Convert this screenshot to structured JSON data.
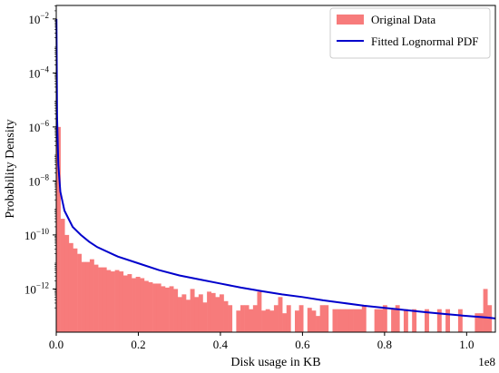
{
  "chart_data": {
    "type": "bar",
    "xlabel": "Disk usage in KB",
    "ylabel": "Probability Density",
    "x_scale_note": "1e8",
    "xlim": [
      0,
      1.07
    ],
    "y_scale": "log",
    "ylim_exponent": [
      -13.6,
      -1.5
    ],
    "x_ticks": [
      {
        "value": 0.0,
        "label": "0.0"
      },
      {
        "value": 0.2,
        "label": "0.2"
      },
      {
        "value": 0.4,
        "label": "0.4"
      },
      {
        "value": 0.6,
        "label": "0.6"
      },
      {
        "value": 0.8,
        "label": "0.8"
      },
      {
        "value": 1.0,
        "label": "1.0"
      }
    ],
    "y_ticks": [
      {
        "exp": -2,
        "base": "10",
        "sup": "−2"
      },
      {
        "exp": -4,
        "base": "10",
        "sup": "−4"
      },
      {
        "exp": -6,
        "base": "10",
        "sup": "−6"
      },
      {
        "exp": -8,
        "base": "10",
        "sup": "−8"
      },
      {
        "exp": -10,
        "base": "10",
        "sup": "−10"
      },
      {
        "exp": -12,
        "base": "10",
        "sup": "−12"
      }
    ],
    "legend": {
      "placement": "top-right",
      "items": [
        {
          "label": "Original Data",
          "kind": "patch",
          "color": "#f77b7b"
        },
        {
          "label": "Fitted Lognormal PDF",
          "kind": "line",
          "color": "#0000cc"
        }
      ]
    },
    "series": [
      {
        "name": "Original Data",
        "kind": "histogram",
        "color": "#f77b7b",
        "bin_width": 0.0102,
        "log10_density": [
          -6.0,
          -9.4,
          -10.0,
          -10.3,
          -10.5,
          -10.7,
          -11.0,
          -11.0,
          -10.9,
          -11.1,
          -11.2,
          -11.2,
          -11.3,
          -11.35,
          -11.3,
          -11.35,
          -11.5,
          -11.45,
          -11.6,
          -11.55,
          -11.6,
          -11.7,
          -11.75,
          -11.8,
          -11.8,
          -11.9,
          -11.95,
          -11.9,
          -12.0,
          -12.3,
          -12.2,
          -12.4,
          -12.0,
          -12.3,
          -12.2,
          -12.5,
          -12.1,
          -12.15,
          -12.3,
          -12.2,
          -12.45,
          -12.6,
          -13.6,
          -12.8,
          -12.6,
          -12.6,
          -12.75,
          -12.6,
          -12.1,
          -12.8,
          -12.75,
          -12.8,
          -12.6,
          -12.3,
          -12.9,
          -12.6,
          -13.6,
          -12.8,
          -12.6,
          -13.6,
          -12.7,
          -12.8,
          -13.0,
          -12.6,
          -12.6,
          -13.6,
          -12.75,
          -12.75,
          -12.75,
          -12.75,
          -12.75,
          -12.75,
          -12.75,
          -12.6,
          -13.6,
          -13.6,
          -12.75,
          -12.75,
          -12.6,
          -13.6,
          -12.75,
          -12.6,
          -13.6,
          -12.75,
          -13.6,
          -12.75,
          -13.6,
          -13.6,
          -12.75,
          -13.6,
          -13.6,
          -12.75,
          -13.6,
          -12.75,
          -13.6,
          -13.6,
          -12.75,
          -13.6,
          -13.6,
          -13.6,
          -12.9,
          -12.9,
          -12.0,
          -12.6
        ]
      },
      {
        "name": "Fitted Lognormal PDF",
        "kind": "line",
        "color": "#0000cc",
        "points": [
          [
            0.0005,
            -2.0
          ],
          [
            0.002,
            -5.6
          ],
          [
            0.005,
            -7.4
          ],
          [
            0.01,
            -8.4
          ],
          [
            0.02,
            -9.1
          ],
          [
            0.04,
            -9.7
          ],
          [
            0.06,
            -10.0
          ],
          [
            0.08,
            -10.25
          ],
          [
            0.1,
            -10.45
          ],
          [
            0.15,
            -10.8
          ],
          [
            0.2,
            -11.05
          ],
          [
            0.25,
            -11.3
          ],
          [
            0.3,
            -11.5
          ],
          [
            0.35,
            -11.65
          ],
          [
            0.4,
            -11.8
          ],
          [
            0.45,
            -11.95
          ],
          [
            0.5,
            -12.08
          ],
          [
            0.55,
            -12.2
          ],
          [
            0.6,
            -12.3
          ],
          [
            0.65,
            -12.42
          ],
          [
            0.7,
            -12.52
          ],
          [
            0.75,
            -12.62
          ],
          [
            0.8,
            -12.7
          ],
          [
            0.85,
            -12.78
          ],
          [
            0.9,
            -12.86
          ],
          [
            0.95,
            -12.93
          ],
          [
            1.0,
            -13.0
          ],
          [
            1.05,
            -13.06
          ],
          [
            1.07,
            -13.09
          ]
        ]
      }
    ]
  }
}
